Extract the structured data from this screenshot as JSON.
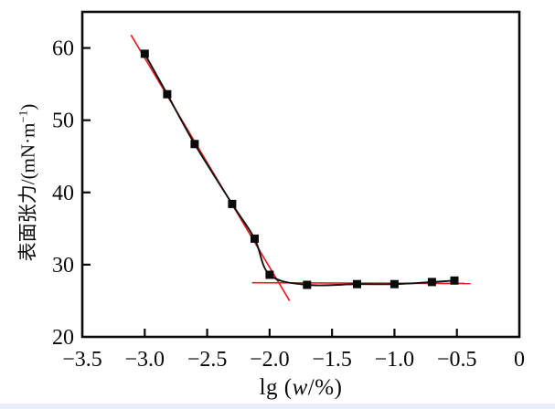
{
  "page": {
    "background_color": "#ffffff",
    "bottom_strip_color": "#e9eff8"
  },
  "chart_data": {
    "type": "line",
    "title": "",
    "xlabel": {
      "prefix": "lg (",
      "variable": "w",
      "suffix": "/%)"
    },
    "ylabel": {
      "prefix": "表面张力/(mN·m",
      "superscript": "−1",
      "suffix": ")"
    },
    "xlim": [
      -3.5,
      0
    ],
    "ylim": [
      20,
      65
    ],
    "grid": false,
    "legend": "none",
    "axis_color": "#0a0a0a",
    "x_ticks": [
      {
        "value": -3.5,
        "label": "−3.5"
      },
      {
        "value": -3.0,
        "label": "−3.0"
      },
      {
        "value": -2.5,
        "label": "−2.5"
      },
      {
        "value": -2.0,
        "label": "−2.0"
      },
      {
        "value": -1.5,
        "label": "−1.5"
      },
      {
        "value": -1.0,
        "label": "−1.0"
      },
      {
        "value": -0.5,
        "label": "−0.5"
      },
      {
        "value": 0,
        "label": "0"
      }
    ],
    "y_ticks": [
      {
        "value": 20,
        "label": "20"
      },
      {
        "value": 30,
        "label": "30"
      },
      {
        "value": 40,
        "label": "40"
      },
      {
        "value": 50,
        "label": "50"
      },
      {
        "value": 60,
        "label": "60"
      }
    ],
    "series": [
      {
        "name": "surface-tension-vs-lg-w",
        "color": "#111111",
        "marker": "square",
        "marker_color": "#0a0a0a",
        "points": [
          [
            -3.0,
            59.2
          ],
          [
            -2.82,
            53.6
          ],
          [
            -2.6,
            46.7
          ],
          [
            -2.3,
            38.4
          ],
          [
            -2.12,
            33.6
          ],
          [
            -2.0,
            28.6
          ],
          [
            -1.7,
            27.2
          ],
          [
            -1.3,
            27.3
          ],
          [
            -1.0,
            27.3
          ],
          [
            -0.7,
            27.6
          ],
          [
            -0.52,
            27.8
          ]
        ]
      }
    ],
    "annotation_lines": [
      {
        "name": "pre-cmc-tangent-line",
        "color": "#e41e25",
        "from": [
          -3.11,
          61.8
        ],
        "to": [
          -1.84,
          25.0
        ]
      },
      {
        "name": "plateau-tangent-line",
        "color": "#e41e25",
        "from": [
          -2.14,
          27.5
        ],
        "to": [
          -0.39,
          27.4
        ]
      }
    ]
  }
}
